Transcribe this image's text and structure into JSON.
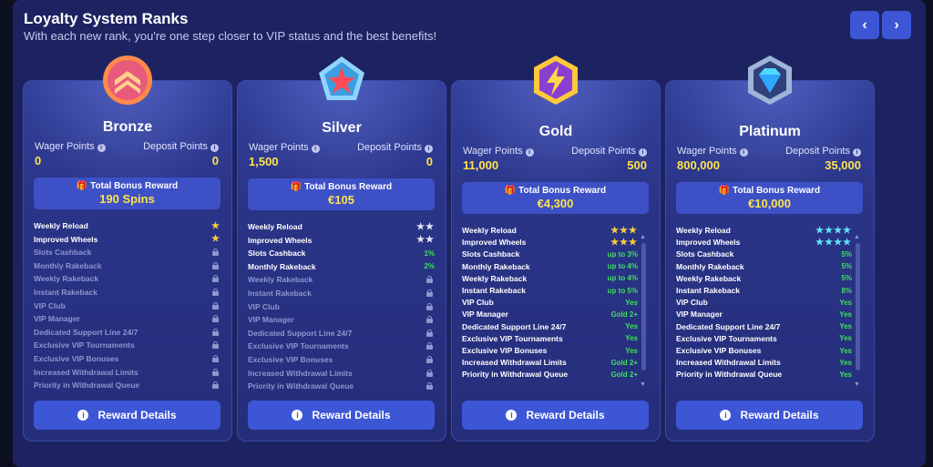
{
  "header": {
    "title": "Loyalty System Ranks",
    "subtitle": "With each new rank, you're one step closer to VIP status and the best benefits!",
    "prev_glyph": "‹",
    "next_glyph": "›"
  },
  "labels": {
    "wager_points": "Wager Points",
    "deposit_points": "Deposit Points",
    "total_bonus_reward": "Total Bonus Reward",
    "reward_details": "Reward Details",
    "info_glyph": "i"
  },
  "ranks": [
    {
      "name": "Bronze",
      "badge_icon": "bronze-chevron-badge",
      "wager": "0",
      "deposit": "0",
      "bonus": "190 Spins",
      "star_style": "gold",
      "features": [
        {
          "name": "Weekly Reload",
          "value": "★"
        },
        {
          "name": "Improved Wheels",
          "value": "★"
        },
        {
          "name": "Slots Cashback",
          "value": "",
          "locked": true
        },
        {
          "name": "Monthly Rakeback",
          "value": "",
          "locked": true
        },
        {
          "name": "Weekly Rakeback",
          "value": "",
          "locked": true
        },
        {
          "name": "Instant Rakeback",
          "value": "",
          "locked": true
        },
        {
          "name": "VIP Club",
          "value": "",
          "locked": true
        },
        {
          "name": "VIP Manager",
          "value": "",
          "locked": true
        },
        {
          "name": "Dedicated Support Line 24/7",
          "value": "",
          "locked": true
        },
        {
          "name": "Exclusive VIP Tournaments",
          "value": "",
          "locked": true
        },
        {
          "name": "Exclusive VIP Bonuses",
          "value": "",
          "locked": true
        },
        {
          "name": "Increased Withdrawal Limits",
          "value": "",
          "locked": true
        },
        {
          "name": "Priority in Withdrawal Queue",
          "value": "",
          "locked": true
        }
      ]
    },
    {
      "name": "Silver",
      "badge_icon": "silver-star-badge",
      "wager": "1,500",
      "deposit": "0",
      "bonus": "€105",
      "star_style": "white",
      "features": [
        {
          "name": "Weekly Reload",
          "value": "★★"
        },
        {
          "name": "Improved Wheels",
          "value": "★★"
        },
        {
          "name": "Slots Cashback",
          "value": "1%"
        },
        {
          "name": "Monthly Rakeback",
          "value": "2%"
        },
        {
          "name": "Weekly Rakeback",
          "value": "",
          "locked": true
        },
        {
          "name": "Instant Rakeback",
          "value": "",
          "locked": true
        },
        {
          "name": "VIP Club",
          "value": "",
          "locked": true
        },
        {
          "name": "VIP Manager",
          "value": "",
          "locked": true
        },
        {
          "name": "Dedicated Support Line 24/7",
          "value": "",
          "locked": true
        },
        {
          "name": "Exclusive VIP Tournaments",
          "value": "",
          "locked": true
        },
        {
          "name": "Exclusive VIP Bonuses",
          "value": "",
          "locked": true
        },
        {
          "name": "Increased Withdrawal Limits",
          "value": "",
          "locked": true
        },
        {
          "name": "Priority in Withdrawal Queue",
          "value": "",
          "locked": true
        }
      ]
    },
    {
      "name": "Gold",
      "badge_icon": "gold-lightning-badge",
      "wager": "11,000",
      "deposit": "500",
      "bonus": "€4,300",
      "star_style": "gold",
      "features": [
        {
          "name": "Weekly Reload",
          "value": "★★★"
        },
        {
          "name": "Improved Wheels",
          "value": "★★★"
        },
        {
          "name": "Slots Cashback",
          "value": "up to 3%"
        },
        {
          "name": "Monthly Rakeback",
          "value": "up to 4%"
        },
        {
          "name": "Weekly Rakeback",
          "value": "up to 4%"
        },
        {
          "name": "Instant Rakeback",
          "value": "up to 5%"
        },
        {
          "name": "VIP Club",
          "value": "Yes"
        },
        {
          "name": "VIP Manager",
          "value": "Gold 2+"
        },
        {
          "name": "Dedicated Support Line 24/7",
          "value": "Yes"
        },
        {
          "name": "Exclusive VIP Tournaments",
          "value": "Yes"
        },
        {
          "name": "Exclusive VIP Bonuses",
          "value": "Yes"
        },
        {
          "name": "Increased Withdrawal Limits",
          "value": "Gold 2+"
        },
        {
          "name": "Priority in Withdrawal Queue",
          "value": "Gold 2+"
        }
      ]
    },
    {
      "name": "Platinum",
      "badge_icon": "platinum-diamond-badge",
      "wager": "800,000",
      "deposit": "35,000",
      "bonus": "€10,000",
      "star_style": "cyan",
      "features": [
        {
          "name": "Weekly Reload",
          "value": "★★★★"
        },
        {
          "name": "Improved Wheels",
          "value": "★★★★"
        },
        {
          "name": "Slots Cashback",
          "value": "5%"
        },
        {
          "name": "Monthly Rakeback",
          "value": "5%"
        },
        {
          "name": "Weekly Rakeback",
          "value": "5%"
        },
        {
          "name": "Instant Rakeback",
          "value": "8%"
        },
        {
          "name": "VIP Club",
          "value": "Yes"
        },
        {
          "name": "VIP Manager",
          "value": "Yes"
        },
        {
          "name": "Dedicated Support Line 24/7",
          "value": "Yes"
        },
        {
          "name": "Exclusive VIP Tournaments",
          "value": "Yes"
        },
        {
          "name": "Exclusive VIP Bonuses",
          "value": "Yes"
        },
        {
          "name": "Increased Withdrawal Limits",
          "value": "Yes"
        },
        {
          "name": "Priority in Withdrawal Queue",
          "value": "Yes"
        }
      ]
    }
  ],
  "colors": {
    "panel": "#1d2361",
    "accent_button": "#3d56d6",
    "points_yellow": "#ffe34d",
    "value_green": "#3ee060"
  }
}
